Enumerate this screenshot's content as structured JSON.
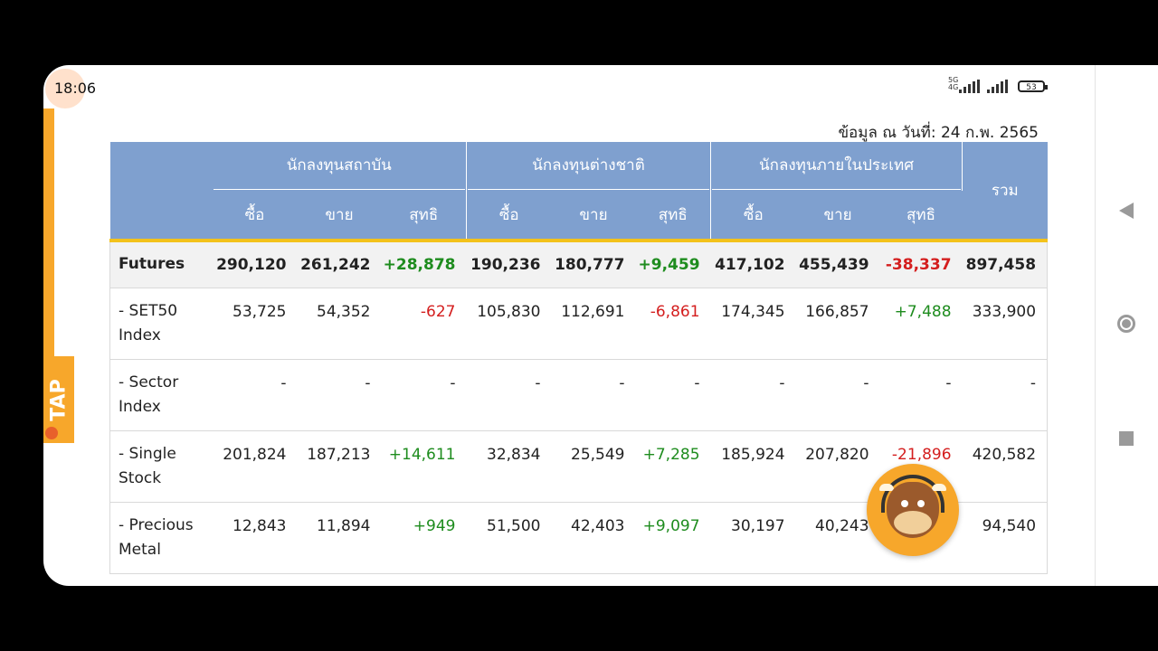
{
  "status": {
    "time": "18:06",
    "net_top": "5G",
    "net_bottom": "4G",
    "battery": "53"
  },
  "side_tab": {
    "label": "TAP"
  },
  "date_line": "ข้อมูล ณ วันที่: 24 ก.พ. 2565",
  "table": {
    "groups": [
      "นักลงทุนสถาบัน",
      "นักลงทุนต่างชาติ",
      "นักลงทุนภายในประเทศ"
    ],
    "total_header": "รวม",
    "sub_headers": [
      "ซื้อ",
      "ขาย",
      "สุทธิ",
      "ซื้อ",
      "ขาย",
      "สุทธิ",
      "ซื้อ",
      "ขาย",
      "สุทธิ"
    ],
    "rows": [
      {
        "label": "Futures",
        "cells": [
          "290,120",
          "261,242",
          "+28,878",
          "190,236",
          "180,777",
          "+9,459",
          "417,102",
          "455,439",
          "-38,337",
          "897,458"
        ]
      },
      {
        "label": "- SET50 Index",
        "cells": [
          "53,725",
          "54,352",
          "-627",
          "105,830",
          "112,691",
          "-6,861",
          "174,345",
          "166,857",
          "+7,488",
          "333,900"
        ]
      },
      {
        "label": "- Sector Index",
        "cells": [
          "-",
          "-",
          "-",
          "-",
          "-",
          "-",
          "-",
          "-",
          "-",
          "-"
        ]
      },
      {
        "label": "- Single Stock",
        "cells": [
          "201,824",
          "187,213",
          "+14,611",
          "32,834",
          "25,549",
          "+7,285",
          "185,924",
          "207,820",
          "-21,896",
          "420,582"
        ]
      },
      {
        "label": "- Precious Metal",
        "cells": [
          "12,843",
          "11,894",
          "+949",
          "51,500",
          "42,403",
          "+9,097",
          "30,197",
          "40,243",
          "",
          "94,540"
        ]
      }
    ]
  },
  "colors": {
    "header_bg": "#7fa0cf",
    "header_underline": "#f3c21b",
    "positive": "#1e8c1e",
    "negative": "#d41e1e",
    "accent": "#f7a72b"
  }
}
